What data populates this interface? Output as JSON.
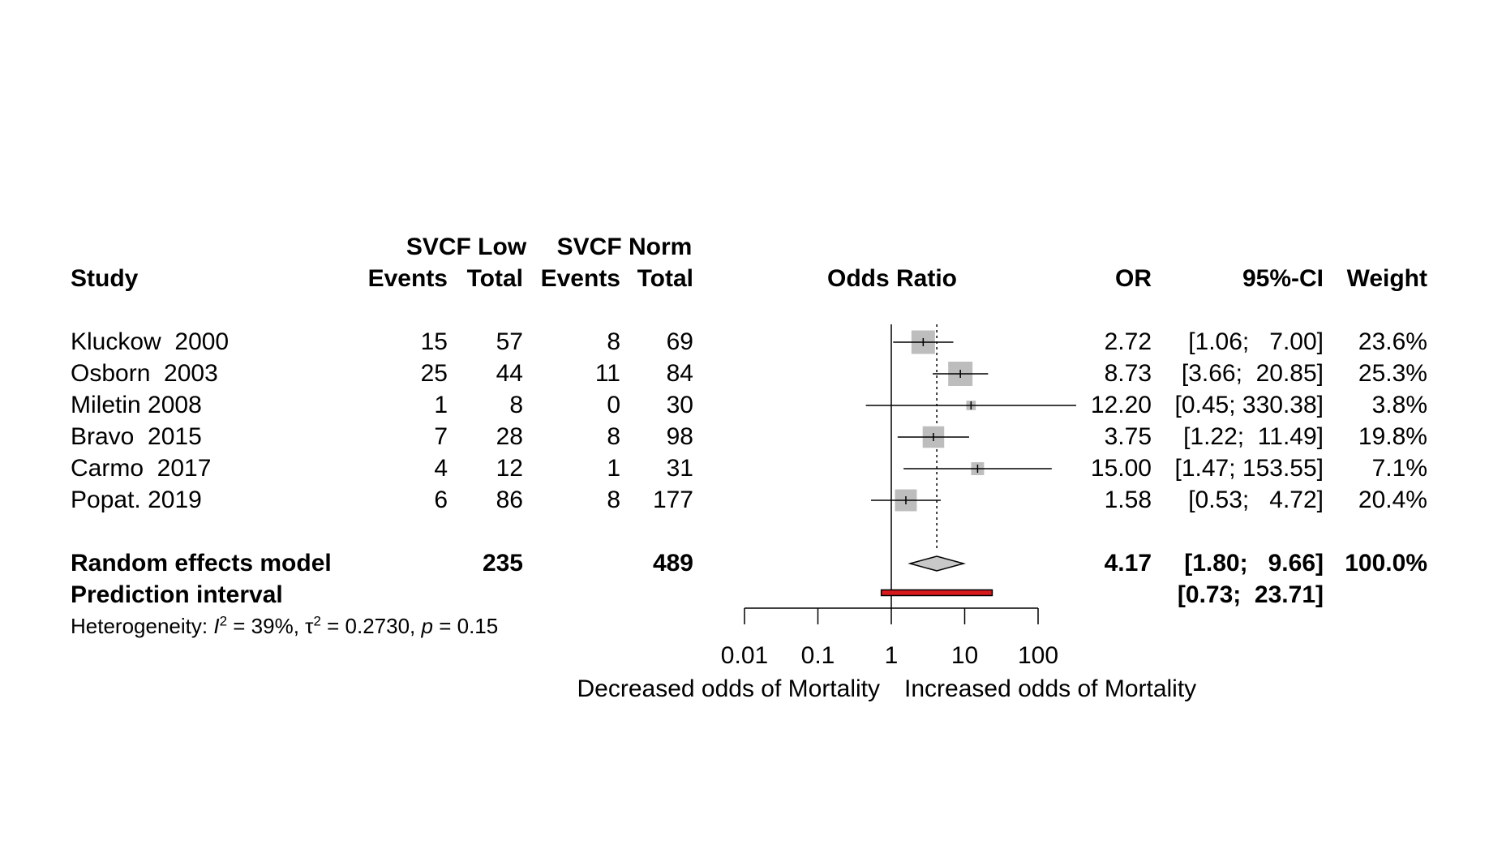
{
  "header": {
    "study": "Study",
    "group1": "SVCF Low",
    "group2": "SVCF Norm",
    "events": "Events",
    "total": "Total",
    "plot_title": "Odds Ratio",
    "or": "OR",
    "ci": "95%-CI",
    "weight": "Weight"
  },
  "studies": [
    {
      "name": "Kluckow  2000",
      "e1": "15",
      "n1": "57",
      "e2": "8",
      "n2": "69",
      "or_text": "2.72",
      "ci_text": "[1.06;   7.00]",
      "weight": "23.6%"
    },
    {
      "name": "Osborn  2003",
      "e1": "25",
      "n1": "44",
      "e2": "11",
      "n2": "84",
      "or_text": "8.73",
      "ci_text": "[3.66;  20.85]",
      "weight": "25.3%"
    },
    {
      "name": "Miletin 2008",
      "e1": "1",
      "n1": "8",
      "e2": "0",
      "n2": "30",
      "or_text": "12.20",
      "ci_text": "[0.45; 330.38]",
      "weight": "3.8%"
    },
    {
      "name": "Bravo  2015",
      "e1": "7",
      "n1": "28",
      "e2": "8",
      "n2": "98",
      "or_text": "3.75",
      "ci_text": "[1.22;  11.49]",
      "weight": "19.8%"
    },
    {
      "name": "Carmo  2017",
      "e1": "4",
      "n1": "12",
      "e2": "1",
      "n2": "31",
      "or_text": "15.00",
      "ci_text": "[1.47; 153.55]",
      "weight": "7.1%"
    },
    {
      "name": "Popat. 2019",
      "e1": "6",
      "n1": "86",
      "e2": "8",
      "n2": "177",
      "or_text": "1.58",
      "ci_text": "[0.53;   4.72]",
      "weight": "20.4%"
    }
  ],
  "model": {
    "label": "Random effects model",
    "n1": "235",
    "n2": "489",
    "or_text": "4.17",
    "ci_text": "[1.80;   9.66]",
    "weight": "100.0%"
  },
  "prediction": {
    "label": "Prediction interval",
    "ci_text": "[0.73;  23.71]"
  },
  "heterogeneity": {
    "prefix": "Heterogeneity: ",
    "i2_symbol": "I",
    "i2_value": " = 39%, ",
    "tau2_symbol": "τ",
    "tau2_value": " = 0.2730, ",
    "p_symbol": "p",
    "p_value": " = 0.15",
    "sup": "2"
  },
  "axis": {
    "left_label": "Decreased odds of Mortality",
    "right_label": "Increased odds of Mortality"
  },
  "colors": {
    "square": "#bdbdbd",
    "diamond": "#c8c8c8",
    "prediction": "#d7191c",
    "line": "#000000"
  },
  "chart_data": {
    "type": "forest",
    "scale": "log",
    "xlim": [
      0.01,
      100
    ],
    "ticks": [
      0.01,
      0.1,
      1,
      10,
      100
    ],
    "tick_labels": [
      "0.01",
      "0.1",
      "1",
      "10",
      "100"
    ],
    "reference_line": 1,
    "xlabel_left": "Decreased odds of Mortality",
    "xlabel_right": "Increased odds of Mortality",
    "series": [
      {
        "or": 2.72,
        "lower": 1.06,
        "upper": 7.0,
        "weight": 23.6
      },
      {
        "or": 8.73,
        "lower": 3.66,
        "upper": 20.85,
        "weight": 25.3
      },
      {
        "or": 12.2,
        "lower": 0.45,
        "upper": 330.38,
        "weight": 3.8
      },
      {
        "or": 3.75,
        "lower": 1.22,
        "upper": 11.49,
        "weight": 19.8
      },
      {
        "or": 15.0,
        "lower": 1.47,
        "upper": 153.55,
        "weight": 7.1
      },
      {
        "or": 1.58,
        "lower": 0.53,
        "upper": 4.72,
        "weight": 20.4
      }
    ],
    "summary": {
      "or": 4.17,
      "lower": 1.8,
      "upper": 9.66
    },
    "prediction_interval": [
      0.73,
      23.71
    ]
  }
}
